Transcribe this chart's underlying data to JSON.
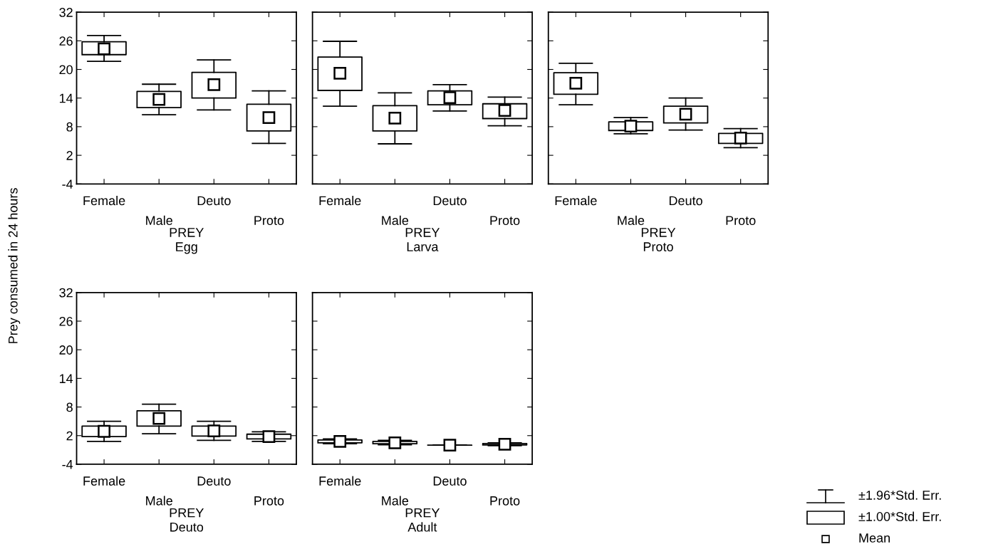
{
  "chart_data": [
    {
      "type": "box",
      "xlabel": "PREY\nEgg",
      "ylabel": "Prey consumed in 24 hours",
      "categories": [
        "Female",
        "Male",
        "Deuto",
        "Proto"
      ],
      "ylim": [
        -4,
        32
      ],
      "yticks": [
        -4,
        2,
        8,
        14,
        20,
        26,
        32
      ],
      "grid": false,
      "marker": "square",
      "boxes": [
        {
          "low": 21.7,
          "q1": 23.1,
          "mean": 24.3,
          "q3": 25.8,
          "high": 27.1
        },
        {
          "low": 10.5,
          "q1": 12.0,
          "mean": 13.7,
          "q3": 15.4,
          "high": 16.9
        },
        {
          "low": 11.5,
          "q1": 14.0,
          "mean": 16.8,
          "q3": 19.4,
          "high": 22.0
        },
        {
          "low": 4.5,
          "q1": 7.1,
          "mean": 9.9,
          "q3": 12.7,
          "high": 15.5
        }
      ]
    },
    {
      "type": "box",
      "xlabel": "PREY\nLarva",
      "categories": [
        "Female",
        "Male",
        "Deuto",
        "Proto"
      ],
      "ylim": [
        -4,
        32
      ],
      "yticks": [
        -4,
        2,
        8,
        14,
        20,
        26,
        32
      ],
      "tick_labels": "x",
      "grid": false,
      "marker": "square",
      "boxes": [
        {
          "low": 12.3,
          "q1": 15.6,
          "mean": 19.2,
          "q3": 22.6,
          "high": 25.9
        },
        {
          "low": 4.4,
          "q1": 7.1,
          "mean": 9.8,
          "q3": 12.4,
          "high": 15.1
        },
        {
          "low": 11.3,
          "q1": 12.6,
          "mean": 14.1,
          "q3": 15.5,
          "high": 16.8
        },
        {
          "low": 8.2,
          "q1": 9.7,
          "mean": 11.4,
          "q3": 12.8,
          "high": 14.2
        }
      ]
    },
    {
      "type": "box",
      "xlabel": "PREY\nProto",
      "categories": [
        "Female",
        "Male",
        "Deuto",
        "Proto"
      ],
      "ylim": [
        -4,
        32
      ],
      "yticks": [
        -4,
        2,
        8,
        14,
        20,
        26,
        32
      ],
      "tick_labels": "x",
      "grid": false,
      "marker": "square",
      "boxes": [
        {
          "low": 12.6,
          "q1": 14.8,
          "mean": 17.1,
          "q3": 19.3,
          "high": 21.3
        },
        {
          "low": 6.5,
          "q1": 7.2,
          "mean": 8.1,
          "q3": 9.0,
          "high": 9.9
        },
        {
          "low": 7.3,
          "q1": 8.8,
          "mean": 10.6,
          "q3": 12.3,
          "high": 14.0
        },
        {
          "low": 3.6,
          "q1": 4.5,
          "mean": 5.6,
          "q3": 6.6,
          "high": 7.6
        }
      ]
    },
    {
      "type": "box",
      "xlabel": "PREY\nDeuto",
      "categories": [
        "Female",
        "Male",
        "Deuto",
        "Proto"
      ],
      "ylim": [
        -4,
        32
      ],
      "yticks": [
        -4,
        2,
        8,
        14,
        20,
        26,
        32
      ],
      "grid": false,
      "marker": "square",
      "boxes": [
        {
          "low": 0.8,
          "q1": 1.8,
          "mean": 2.9,
          "q3": 4.0,
          "high": 5.0
        },
        {
          "low": 2.4,
          "q1": 4.0,
          "mean": 5.6,
          "q3": 7.2,
          "high": 8.6
        },
        {
          "low": 1.0,
          "q1": 1.9,
          "mean": 3.0,
          "q3": 4.0,
          "high": 5.0
        },
        {
          "low": 0.8,
          "q1": 1.3,
          "mean": 1.8,
          "q3": 2.3,
          "high": 2.8
        }
      ]
    },
    {
      "type": "box",
      "xlabel": "PREY\nAdult",
      "categories": [
        "Female",
        "Male",
        "Deuto",
        "Proto"
      ],
      "ylim": [
        -4,
        32
      ],
      "yticks": [
        -4,
        2,
        8,
        14,
        20,
        26,
        32
      ],
      "tick_labels": "x",
      "grid": false,
      "marker": "square",
      "annotations": [
        "±1.96*Std. Err.",
        "±1.00*Std. Err.",
        "Mean"
      ],
      "boxes": [
        {
          "low": 0.3,
          "q1": 0.5,
          "mean": 0.8,
          "q3": 1.1,
          "high": 1.3
        },
        {
          "low": 0.1,
          "q1": 0.3,
          "mean": 0.5,
          "q3": 0.8,
          "high": 1.0
        },
        {
          "low": 0,
          "q1": 0,
          "mean": 0,
          "q3": 0,
          "high": 0
        },
        {
          "low": -0.1,
          "q1": 0.05,
          "mean": 0.2,
          "q3": 0.35,
          "high": 0.5
        }
      ]
    }
  ]
}
